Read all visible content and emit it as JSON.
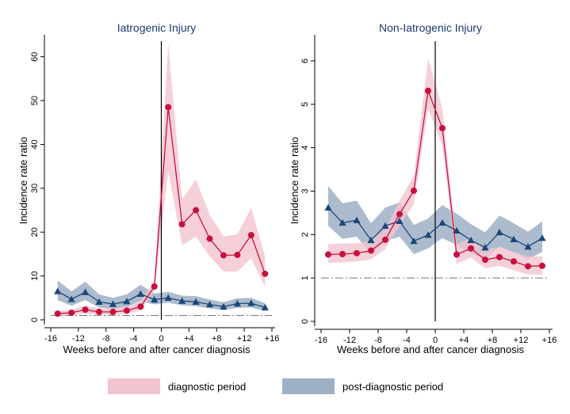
{
  "chart_data": [
    {
      "type": "line",
      "title": "Iatrogenic Injury",
      "xlabel": "Weeks before and after cancer diagnosis",
      "ylabel": "",
      "xlim": [
        -16,
        16
      ],
      "ylim": [
        0,
        65
      ],
      "xticks": [
        -16,
        -12,
        -8,
        -4,
        0,
        4,
        8,
        12,
        16
      ],
      "xtick_labels": [
        "-16",
        "-12",
        "-8",
        "-4",
        "0",
        "+4",
        "+8",
        "+12",
        "+16"
      ],
      "yticks": [
        0,
        10,
        20,
        30,
        40,
        50,
        60
      ],
      "ytick_labels": [
        "0",
        "10",
        "20",
        "30",
        "40",
        "50",
        "60"
      ],
      "reference_line_y": 1,
      "vertical_line_x": 0,
      "series": [
        {
          "name": "diagnostic period",
          "color": "#c8103e",
          "band_color": "#f2c4cf",
          "marker": "circle",
          "x": [
            -15,
            -13,
            -11,
            -9,
            -7,
            -5,
            -3,
            -1,
            1,
            3,
            5,
            7,
            9,
            11,
            13,
            15
          ],
          "y": [
            1.4,
            1.6,
            2.3,
            1.8,
            1.8,
            2.1,
            3.0,
            7.6,
            48.5,
            21.8,
            25.0,
            18.5,
            14.7,
            14.8,
            19.3,
            10.5
          ],
          "lower": [
            0.9,
            1.0,
            1.5,
            1.1,
            1.1,
            1.4,
            2.1,
            6.5,
            34.0,
            17.0,
            19.0,
            14.5,
            11.0,
            11.0,
            14.0,
            7.5
          ],
          "upper": [
            2.0,
            2.3,
            3.2,
            2.6,
            2.6,
            3.0,
            4.2,
            9.0,
            63.0,
            27.5,
            32.0,
            24.0,
            19.0,
            19.5,
            25.5,
            14.5
          ]
        },
        {
          "name": "post-diagnostic period",
          "color": "#1b4778",
          "band_color": "#9eb0c5",
          "marker": "triangle",
          "x": [
            -15,
            -13,
            -11,
            -9,
            -7,
            -5,
            -3,
            -1,
            1,
            3,
            5,
            7,
            9,
            11,
            13,
            15
          ],
          "y": [
            6.5,
            4.7,
            6.3,
            4.1,
            3.6,
            4.2,
            5.9,
            4.6,
            5.0,
            4.3,
            4.1,
            3.5,
            3.0,
            3.7,
            3.8,
            2.8
          ],
          "lower": [
            4.5,
            3.2,
            4.5,
            2.8,
            2.5,
            3.0,
            4.3,
            3.5,
            3.9,
            3.3,
            3.1,
            2.6,
            2.2,
            2.7,
            2.8,
            2.0
          ],
          "upper": [
            9.0,
            6.5,
            8.7,
            5.8,
            5.0,
            5.8,
            8.0,
            6.0,
            6.4,
            5.5,
            5.4,
            4.6,
            4.0,
            4.9,
            5.0,
            3.8
          ]
        }
      ]
    },
    {
      "type": "line",
      "title": "Non-Iatrogenic Injury",
      "xlabel": "Weeks before and after cancer diagnosis",
      "ylabel": "Incidence rate ratio",
      "xlim": [
        -16,
        16
      ],
      "ylim": [
        0,
        6.6
      ],
      "xticks": [
        -16,
        -12,
        -8,
        -4,
        0,
        4,
        8,
        12,
        16
      ],
      "xtick_labels": [
        "-16",
        "-12",
        "-8",
        "-4",
        "0",
        "+4",
        "+8",
        "+12",
        "+16"
      ],
      "yticks": [
        0,
        1,
        2,
        3,
        4,
        5,
        6
      ],
      "ytick_labels": [
        "0",
        "1",
        "2",
        "3",
        "4",
        "5",
        "6"
      ],
      "reference_line_y": 1,
      "vertical_line_x": 0,
      "series": [
        {
          "name": "diagnostic period",
          "color": "#c8103e",
          "band_color": "#f2c4cf",
          "marker": "circle",
          "x": [
            -15,
            -13,
            -11,
            -9,
            -7,
            -5,
            -3,
            -1,
            1,
            3,
            5,
            7,
            9,
            11,
            13,
            15
          ],
          "y": [
            1.54,
            1.55,
            1.57,
            1.63,
            1.88,
            2.47,
            3.01,
            5.31,
            4.45,
            1.54,
            1.68,
            1.42,
            1.48,
            1.38,
            1.27,
            1.28
          ],
          "lower": [
            1.35,
            1.36,
            1.38,
            1.43,
            1.66,
            2.2,
            2.7,
            4.9,
            4.05,
            1.33,
            1.47,
            1.22,
            1.28,
            1.18,
            1.08,
            1.08
          ],
          "upper": [
            1.78,
            1.79,
            1.8,
            1.86,
            2.13,
            2.78,
            3.35,
            6.05,
            4.9,
            1.78,
            1.92,
            1.64,
            1.72,
            1.6,
            1.5,
            1.5
          ]
        },
        {
          "name": "post-diagnostic period",
          "color": "#1b4778",
          "band_color": "#9eb0c5",
          "marker": "triangle",
          "x": [
            -15,
            -13,
            -11,
            -9,
            -7,
            -5,
            -3,
            -1,
            1,
            3,
            5,
            7,
            9,
            11,
            13,
            15
          ],
          "y": [
            2.62,
            2.27,
            2.33,
            1.87,
            2.2,
            2.31,
            1.85,
            1.99,
            2.27,
            2.09,
            1.87,
            1.7,
            2.05,
            1.89,
            1.72,
            1.92
          ],
          "lower": [
            2.2,
            1.9,
            1.95,
            1.55,
            1.85,
            1.95,
            1.55,
            1.68,
            1.92,
            1.76,
            1.56,
            1.42,
            1.72,
            1.58,
            1.43,
            1.6
          ],
          "upper": [
            3.12,
            2.72,
            2.78,
            2.26,
            2.62,
            2.74,
            2.22,
            2.37,
            2.68,
            2.48,
            2.24,
            2.05,
            2.44,
            2.26,
            2.07,
            2.3
          ]
        }
      ]
    }
  ],
  "legend": {
    "items": [
      "diagnostic period",
      "post-diagnostic period"
    ],
    "swatch_colors": [
      "#f2c4cf",
      "#9eb0c5"
    ],
    "placement": "bottom"
  }
}
